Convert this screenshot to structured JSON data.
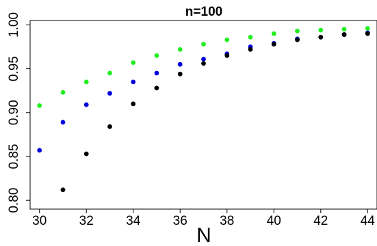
{
  "chart_data": {
    "type": "scatter",
    "title": "n=100",
    "xlabel": "N",
    "ylabel": "",
    "xlim": [
      29.6,
      44.4
    ],
    "ylim": [
      0.79,
      1.005
    ],
    "xticks": [
      "30",
      "32",
      "34",
      "36",
      "38",
      "40",
      "42",
      "44"
    ],
    "yticks": [
      "0.80",
      "0.85",
      "0.90",
      "0.95",
      "1.00"
    ],
    "grid": false,
    "legend": "none",
    "series": [
      {
        "color": "#22ee22",
        "x": [
          30,
          31,
          32,
          33,
          34,
          35,
          36,
          37,
          38,
          39,
          40,
          41,
          42,
          43,
          44
        ],
        "y": [
          0.908,
          0.923,
          0.935,
          0.945,
          0.957,
          0.965,
          0.972,
          0.978,
          0.983,
          0.986,
          0.99,
          0.993,
          0.994,
          0.995,
          0.996
        ]
      },
      {
        "color": "#0000dd",
        "x": [
          30,
          31,
          32,
          33,
          34,
          35,
          36,
          37,
          38,
          39,
          40,
          41,
          42,
          43,
          44
        ],
        "y": [
          0.857,
          0.889,
          0.909,
          0.922,
          0.935,
          0.945,
          0.955,
          0.961,
          0.967,
          0.975,
          0.979,
          0.984,
          0.986,
          0.989,
          0.991
        ]
      },
      {
        "color": "#000000",
        "x": [
          31,
          32,
          33,
          34,
          35,
          36,
          37,
          38,
          39,
          40,
          41,
          42,
          43,
          44
        ],
        "y": [
          0.812,
          0.853,
          0.884,
          0.91,
          0.928,
          0.944,
          0.956,
          0.965,
          0.972,
          0.978,
          0.983,
          0.986,
          0.989,
          0.99
        ]
      }
    ]
  }
}
